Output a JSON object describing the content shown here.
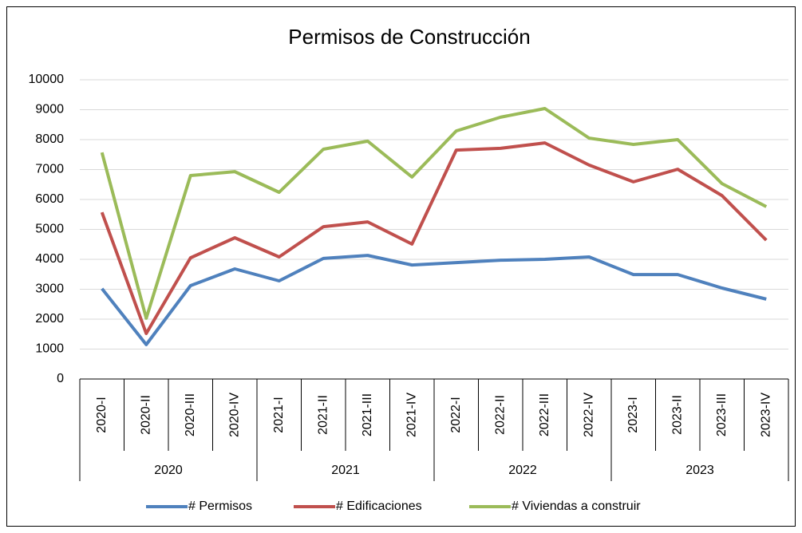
{
  "chart_data": {
    "type": "line",
    "title": "Permisos de Construcción",
    "categories": [
      "2020-I",
      "2020-II",
      "2020-III",
      "2020-IV",
      "2021-I",
      "2021-II",
      "2021-III",
      "2021-IV",
      "2022-I",
      "2022-II",
      "2022-III",
      "2022-IV",
      "2023-I",
      "2023-II",
      "2023-III",
      "2023-IV"
    ],
    "category_groups": [
      "2020",
      "2021",
      "2022",
      "2023"
    ],
    "series": [
      {
        "name": "# Permisos",
        "color": "#4f81bd",
        "values": [
          3020,
          1150,
          3120,
          3680,
          3280,
          4030,
          4130,
          3810,
          3890,
          3970,
          4000,
          4080,
          3490,
          3490,
          3040,
          2670
        ]
      },
      {
        "name": "# Edificaciones",
        "color": "#c0504d",
        "values": [
          5570,
          1520,
          4050,
          4720,
          4080,
          5090,
          5250,
          4510,
          7650,
          7710,
          7890,
          7150,
          6590,
          7010,
          6130,
          4640
        ]
      },
      {
        "name": "# Viviendas a construir",
        "color": "#9bbb59",
        "values": [
          7570,
          2030,
          6800,
          6930,
          6240,
          7680,
          7950,
          6750,
          8290,
          8750,
          9040,
          8050,
          7840,
          8000,
          6530,
          5760
        ]
      }
    ],
    "ylim": [
      0,
      10000
    ],
    "yticks": [
      0,
      1000,
      2000,
      3000,
      4000,
      5000,
      6000,
      7000,
      8000,
      9000,
      10000
    ],
    "grid": true,
    "legend": "bottom"
  }
}
